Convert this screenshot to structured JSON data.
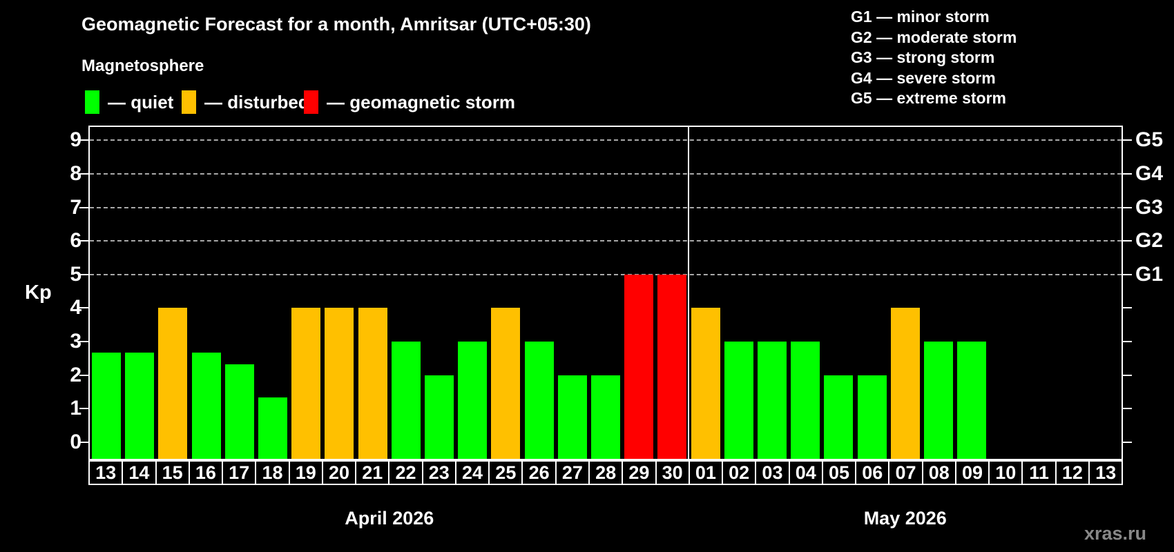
{
  "title": "Geomagnetic Forecast for a month, Amritsar (UTC+05:30)",
  "subtitle": "Magnetosphere",
  "legend": [
    {
      "label": "— quiet",
      "level": "quiet",
      "color": "#00ff00"
    },
    {
      "label": "— disturbed",
      "level": "disturbed",
      "color": "#ffc000"
    },
    {
      "label": "— geomagnetic storm",
      "level": "storm",
      "color": "#ff0000"
    }
  ],
  "g_legend": [
    "G1 — minor storm",
    "G2 — moderate storm",
    "G3 — strong storm",
    "G4 — severe storm",
    "G5 — extreme storm"
  ],
  "watermark": "xras.ru",
  "chart_data": {
    "type": "bar",
    "ylabel": "Kp",
    "ylim": [
      -0.5,
      9.4
    ],
    "y_ticks": [
      0,
      1,
      2,
      3,
      4,
      5,
      6,
      7,
      8,
      9
    ],
    "g_ticks": [
      {
        "kp": 5,
        "label": "G1"
      },
      {
        "kp": 6,
        "label": "G2"
      },
      {
        "kp": 7,
        "label": "G3"
      },
      {
        "kp": 8,
        "label": "G4"
      },
      {
        "kp": 9,
        "label": "G5"
      }
    ],
    "gridlines_at": [
      5,
      6,
      7,
      8,
      9
    ],
    "grid": "dashed",
    "months": [
      {
        "label": "April 2026",
        "days": 18
      },
      {
        "label": "May 2026",
        "days": 13
      }
    ],
    "colors": {
      "quiet": "#00ff00",
      "disturbed": "#ffc000",
      "storm": "#ff0000"
    },
    "points": [
      {
        "day": "13",
        "kp": 2.67,
        "level": "quiet"
      },
      {
        "day": "14",
        "kp": 2.67,
        "level": "quiet"
      },
      {
        "day": "15",
        "kp": 4,
        "level": "disturbed"
      },
      {
        "day": "16",
        "kp": 2.67,
        "level": "quiet"
      },
      {
        "day": "17",
        "kp": 2.33,
        "level": "quiet"
      },
      {
        "day": "18",
        "kp": 1.33,
        "level": "quiet"
      },
      {
        "day": "19",
        "kp": 4,
        "level": "disturbed"
      },
      {
        "day": "20",
        "kp": 4,
        "level": "disturbed"
      },
      {
        "day": "21",
        "kp": 4,
        "level": "disturbed"
      },
      {
        "day": "22",
        "kp": 3,
        "level": "quiet"
      },
      {
        "day": "23",
        "kp": 2,
        "level": "quiet"
      },
      {
        "day": "24",
        "kp": 3,
        "level": "quiet"
      },
      {
        "day": "25",
        "kp": 4,
        "level": "disturbed"
      },
      {
        "day": "26",
        "kp": 3,
        "level": "quiet"
      },
      {
        "day": "27",
        "kp": 2,
        "level": "quiet"
      },
      {
        "day": "28",
        "kp": 2,
        "level": "quiet"
      },
      {
        "day": "29",
        "kp": 5,
        "level": "storm"
      },
      {
        "day": "30",
        "kp": 5,
        "level": "storm"
      },
      {
        "day": "01",
        "kp": 4,
        "level": "disturbed"
      },
      {
        "day": "02",
        "kp": 3,
        "level": "quiet"
      },
      {
        "day": "03",
        "kp": 3,
        "level": "quiet"
      },
      {
        "day": "04",
        "kp": 3,
        "level": "quiet"
      },
      {
        "day": "05",
        "kp": 2,
        "level": "quiet"
      },
      {
        "day": "06",
        "kp": 2,
        "level": "quiet"
      },
      {
        "day": "07",
        "kp": 4,
        "level": "disturbed"
      },
      {
        "day": "08",
        "kp": 3,
        "level": "quiet"
      },
      {
        "day": "09",
        "kp": 3,
        "level": "quiet"
      },
      {
        "day": "10",
        "kp": null,
        "level": null
      },
      {
        "day": "11",
        "kp": null,
        "level": null
      },
      {
        "day": "12",
        "kp": null,
        "level": null
      },
      {
        "day": "13",
        "kp": null,
        "level": null
      }
    ]
  }
}
